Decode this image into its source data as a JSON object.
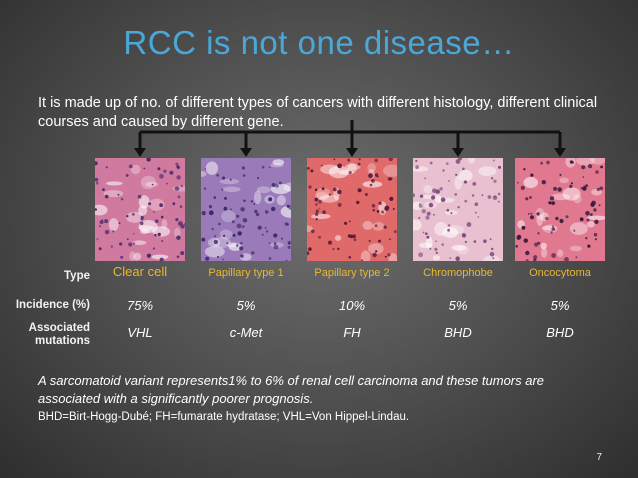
{
  "slide": {
    "title": "RCC is not one disease…",
    "intro": "It is made up of no. of different types of cancers with different histology, different clinical courses and caused by different gene.",
    "row_labels": {
      "type": "Type",
      "incidence": "Incidence (%)",
      "mutations_line1": "Associated",
      "mutations_line2": "mutations"
    },
    "subtypes": [
      {
        "type": "Clear cell",
        "incidence": "75%",
        "mutation": "VHL",
        "stain": "#d07aa0",
        "nuclei": "#4a2a6a"
      },
      {
        "type": "Papillary type 1",
        "incidence": "5%",
        "mutation": "c-Met",
        "stain": "#9a7ab8",
        "nuclei": "#3a2a6a"
      },
      {
        "type": "Papillary type 2",
        "incidence": "10%",
        "mutation": "FH",
        "stain": "#e06a6a",
        "nuclei": "#5a1a3a"
      },
      {
        "type": "Chromophobe",
        "incidence": "5%",
        "mutation": "BHD",
        "stain": "#e8c0d0",
        "nuclei": "#7a4a7a"
      },
      {
        "type": "Oncocytoma",
        "incidence": "5%",
        "mutation": "BHD",
        "stain": "#e07890",
        "nuclei": "#3a1a3a"
      }
    ],
    "note": "A sarcomatoid variant represents1% to 6% of renal cell carcinoma and these tumors are associated with a significantly poorer prognosis.",
    "abbreviations": "BHD=Birt-Hogg-Dubé; FH=fumarate hydratase; VHL=Von Hippel-Lindau.",
    "page_number": "7",
    "colors": {
      "title": "#4aa8d8",
      "type_label": "#e8b830"
    }
  }
}
